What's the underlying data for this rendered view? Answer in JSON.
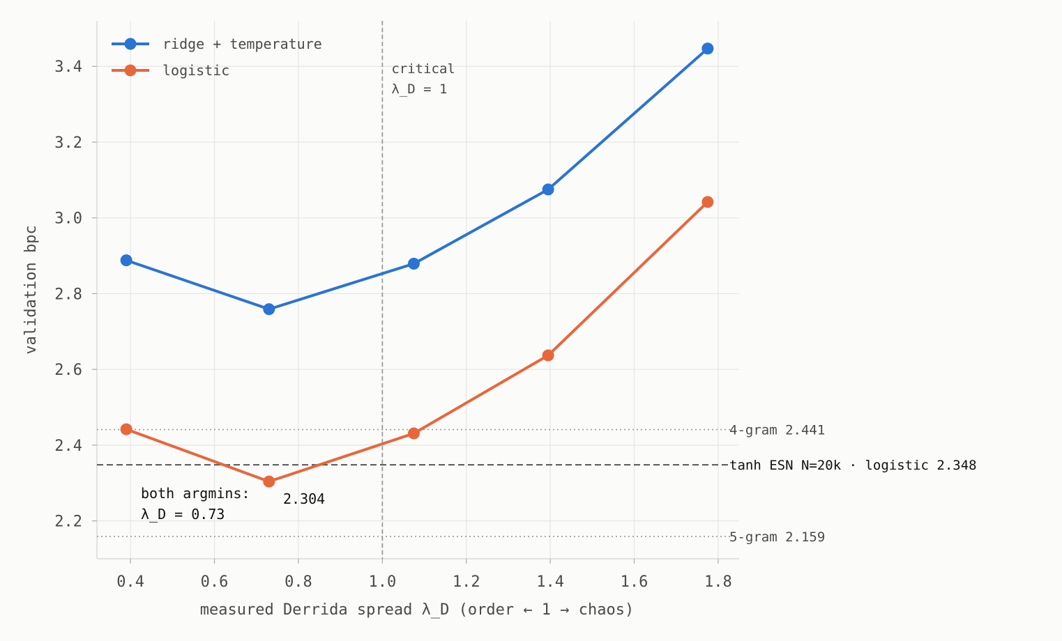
{
  "chart_data": {
    "type": "line",
    "xlabel": "measured Derrida spread λ_D   (order ← 1 → chaos)",
    "ylabel": "validation bpc",
    "xlim": [
      0.32,
      1.85
    ],
    "ylim": [
      2.1,
      3.52
    ],
    "xticks": [
      0.4,
      0.6,
      0.8,
      1.0,
      1.2,
      1.4,
      1.6,
      1.8
    ],
    "yticks": [
      2.2,
      2.4,
      2.6,
      2.8,
      3.0,
      3.2,
      3.4
    ],
    "xtick_labels": [
      "0.4",
      "0.6",
      "0.8",
      "1.0",
      "1.2",
      "1.4",
      "1.6",
      "1.8"
    ],
    "ytick_labels": [
      "2.2",
      "2.4",
      "2.6",
      "2.8",
      "3.0",
      "3.2",
      "3.4"
    ],
    "grid": true,
    "legend_position": "top-left",
    "series": [
      {
        "name": "ridge + temperature",
        "color": "#2a74d3",
        "x": [
          0.39,
          0.73,
          1.075,
          1.395,
          1.775
        ],
        "y": [
          2.888,
          2.759,
          2.879,
          3.075,
          3.447
        ]
      },
      {
        "name": "logistic",
        "color": "#e8673a",
        "x": [
          0.39,
          0.73,
          1.075,
          1.395,
          1.775
        ],
        "y": [
          2.442,
          2.304,
          2.431,
          2.637,
          3.042
        ]
      }
    ],
    "reference_lines": [
      {
        "value": 2.441,
        "label": "4-gram  2.441",
        "style": "dotted",
        "color": "#9a9a9a"
      },
      {
        "value": 2.348,
        "label": "tanh ESN N=20k · logistic  2.348",
        "style": "dashed",
        "color": "#555555"
      },
      {
        "value": 2.159,
        "label": "5-gram  2.159",
        "style": "dotted",
        "color": "#9a9a9a"
      }
    ],
    "critical_line": {
      "x": 1.0,
      "label_line1": "critical",
      "label_line2": "λ_D = 1",
      "color": "#999999"
    },
    "annotations": {
      "argmin_line1": "both argmins:",
      "argmin_line2": "λ_D = 0.73",
      "min_value_label": "2.304",
      "min_value_color": "#e8673a"
    }
  }
}
